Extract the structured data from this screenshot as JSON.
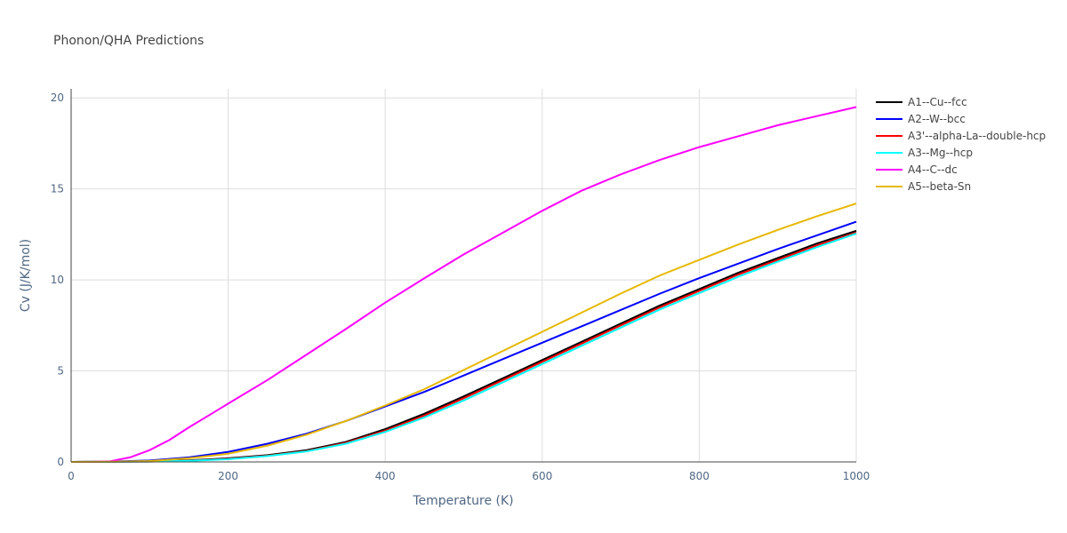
{
  "chart_data": {
    "type": "line",
    "title": "Phonon/QHA Predictions",
    "xlabel": "Temperature (K)",
    "ylabel": "Cv (J/K/mol)",
    "xlim": [
      0,
      1000
    ],
    "ylim": [
      0,
      20.5
    ],
    "xticks": [
      0,
      200,
      400,
      600,
      800,
      1000
    ],
    "yticks": [
      0,
      5,
      10,
      15,
      20
    ],
    "grid": true,
    "legend_position": "top-right",
    "series": [
      {
        "name": "A1--Cu--fcc",
        "color": "#000000",
        "x": [
          0,
          50,
          100,
          150,
          200,
          250,
          300,
          350,
          400,
          450,
          500,
          550,
          600,
          650,
          700,
          750,
          800,
          850,
          900,
          950,
          1000
        ],
        "y": [
          0,
          0.01,
          0.03,
          0.09,
          0.2,
          0.37,
          0.65,
          1.1,
          1.8,
          2.65,
          3.6,
          4.6,
          5.6,
          6.6,
          7.6,
          8.6,
          9.5,
          10.4,
          11.2,
          12.0,
          12.7
        ]
      },
      {
        "name": "A2--W--bcc",
        "color": "#0000ff",
        "x": [
          0,
          50,
          100,
          150,
          200,
          250,
          300,
          350,
          400,
          450,
          500,
          550,
          600,
          650,
          700,
          750,
          800,
          850,
          900,
          950,
          1000
        ],
        "y": [
          0,
          0.02,
          0.08,
          0.25,
          0.55,
          1.0,
          1.55,
          2.25,
          3.05,
          3.85,
          4.75,
          5.65,
          6.55,
          7.45,
          8.35,
          9.25,
          10.1,
          10.9,
          11.7,
          12.45,
          13.2
        ]
      },
      {
        "name": "A3'--alpha-La--double-hcp",
        "color": "#ff0000",
        "x": [
          0,
          50,
          100,
          150,
          200,
          250,
          300,
          350,
          400,
          450,
          500,
          550,
          600,
          650,
          700,
          750,
          800,
          850,
          900,
          950,
          1000
        ],
        "y": [
          0,
          0.01,
          0.02,
          0.07,
          0.17,
          0.34,
          0.6,
          1.05,
          1.72,
          2.55,
          3.5,
          4.5,
          5.5,
          6.5,
          7.5,
          8.5,
          9.4,
          10.3,
          11.1,
          11.9,
          12.6
        ]
      },
      {
        "name": "A3--Mg--hcp",
        "color": "#00ffff",
        "x": [
          0,
          50,
          100,
          150,
          200,
          250,
          300,
          350,
          400,
          450,
          500,
          550,
          600,
          650,
          700,
          750,
          800,
          850,
          900,
          950,
          1000
        ],
        "y": [
          0,
          0.01,
          0.02,
          0.06,
          0.15,
          0.32,
          0.58,
          1.0,
          1.65,
          2.45,
          3.38,
          4.38,
          5.38,
          6.38,
          7.38,
          8.38,
          9.28,
          10.18,
          11.0,
          11.8,
          12.55
        ]
      },
      {
        "name": "A4--C--dc",
        "color": "#ff00ff",
        "x": [
          0,
          25,
          50,
          75,
          100,
          125,
          150,
          175,
          200,
          250,
          300,
          350,
          400,
          450,
          500,
          550,
          600,
          650,
          700,
          750,
          800,
          850,
          900,
          950,
          1000
        ],
        "y": [
          0,
          0.0,
          0.04,
          0.25,
          0.65,
          1.2,
          1.9,
          2.55,
          3.2,
          4.5,
          5.9,
          7.3,
          8.75,
          10.1,
          11.4,
          12.6,
          13.8,
          14.9,
          15.8,
          16.6,
          17.3,
          17.9,
          18.5,
          19.0,
          19.5
        ]
      },
      {
        "name": "A5--beta-Sn",
        "color": "#e6b800",
        "x": [
          0,
          50,
          100,
          150,
          200,
          250,
          300,
          350,
          400,
          450,
          500,
          550,
          600,
          650,
          700,
          750,
          800,
          850,
          900,
          950,
          1000
        ],
        "y": [
          0,
          0.01,
          0.05,
          0.2,
          0.45,
          0.9,
          1.5,
          2.25,
          3.1,
          4.0,
          5.05,
          6.1,
          7.15,
          8.2,
          9.25,
          10.25,
          11.1,
          11.95,
          12.75,
          13.5,
          14.2
        ]
      }
    ]
  }
}
